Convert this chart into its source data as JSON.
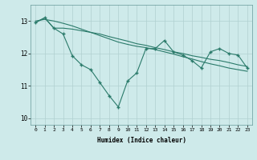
{
  "xlabel": "Humidex (Indice chaleur)",
  "background_color": "#ceeaea",
  "grid_color": "#b0d0d0",
  "line_color": "#2a7a6a",
  "xlim": [
    -0.5,
    23.5
  ],
  "ylim": [
    9.8,
    13.5
  ],
  "yticks": [
    10,
    11,
    12,
    13
  ],
  "xticks": [
    0,
    1,
    2,
    3,
    4,
    5,
    6,
    7,
    8,
    9,
    10,
    11,
    12,
    13,
    14,
    15,
    16,
    17,
    18,
    19,
    20,
    21,
    22,
    23
  ],
  "line1_x": [
    0,
    1,
    2,
    3,
    4,
    5,
    6,
    7,
    8,
    9,
    10,
    11,
    12,
    13,
    14,
    15,
    16,
    17,
    18,
    19,
    20,
    21,
    22,
    23
  ],
  "line1_y": [
    12.95,
    13.1,
    12.78,
    12.6,
    11.93,
    11.65,
    11.5,
    11.1,
    10.7,
    10.35,
    11.15,
    11.4,
    12.15,
    12.15,
    12.4,
    12.05,
    11.95,
    11.78,
    11.55,
    12.05,
    12.15,
    12.0,
    11.95,
    11.55
  ],
  "line2_x": [
    0,
    1,
    2,
    3,
    4,
    5,
    6,
    7,
    8,
    9,
    10,
    11,
    12,
    13,
    14,
    15,
    16,
    17,
    18,
    19,
    20,
    21,
    22,
    23
  ],
  "line2_y": [
    13.0,
    13.05,
    13.0,
    12.93,
    12.85,
    12.75,
    12.65,
    12.55,
    12.45,
    12.35,
    12.28,
    12.22,
    12.18,
    12.12,
    12.05,
    11.98,
    11.9,
    11.83,
    11.75,
    11.68,
    11.62,
    11.55,
    11.5,
    11.45
  ],
  "line3_x": [
    0,
    1,
    2,
    3,
    4,
    5,
    6,
    7,
    8,
    9,
    10,
    11,
    12,
    13,
    14,
    15,
    16,
    17,
    18,
    19,
    20,
    21,
    22,
    23
  ],
  "line3_y": [
    12.95,
    13.1,
    12.78,
    12.78,
    12.75,
    12.7,
    12.65,
    12.6,
    12.52,
    12.45,
    12.38,
    12.3,
    12.25,
    12.18,
    12.12,
    12.05,
    12.0,
    11.93,
    11.88,
    11.82,
    11.78,
    11.72,
    11.65,
    11.6
  ]
}
